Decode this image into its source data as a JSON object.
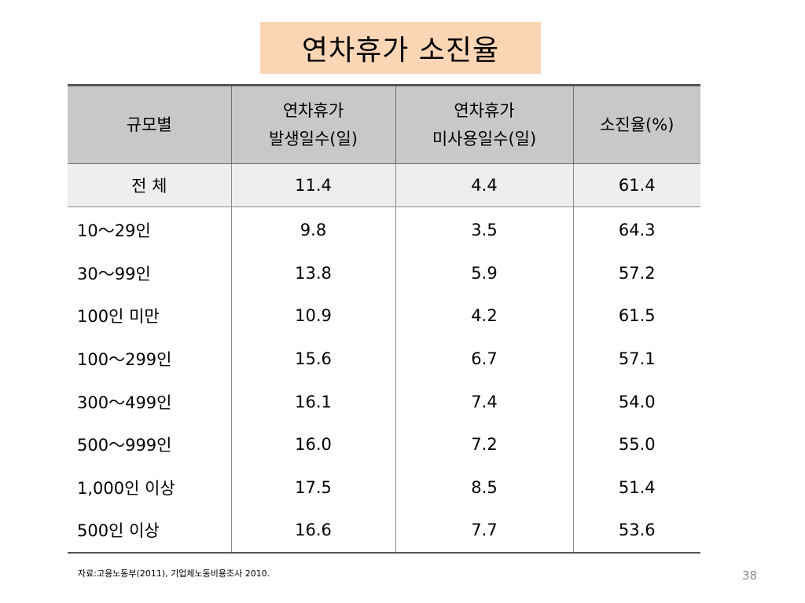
{
  "title": "연차휴가 소진율",
  "table": {
    "headers": [
      [
        "규모별"
      ],
      [
        "연차휴가",
        "발생일수(일)"
      ],
      [
        "연차휴가",
        "미사용일수(일)"
      ],
      [
        "소진율(%)"
      ]
    ],
    "total": {
      "label": "전 체",
      "values": [
        "11.4",
        "4.4",
        "61.4"
      ]
    },
    "rows": [
      {
        "label": "10～29인",
        "values": [
          "9.8",
          "3.5",
          "64.3"
        ]
      },
      {
        "label": "30～99인",
        "values": [
          "13.8",
          "5.9",
          "57.2"
        ]
      },
      {
        "label": "100인 미만",
        "values": [
          "10.9",
          "4.2",
          "61.5"
        ]
      },
      {
        "label": "100～299인",
        "values": [
          "15.6",
          "6.7",
          "57.1"
        ]
      },
      {
        "label": "300～499인",
        "values": [
          "16.1",
          "7.4",
          "54.0"
        ]
      },
      {
        "label": "500～999인",
        "values": [
          "16.0",
          "7.2",
          "55.0"
        ]
      },
      {
        "label": "1,000인 이상",
        "values": [
          "17.5",
          "8.5",
          "51.4"
        ]
      },
      {
        "label": "500인 이상",
        "values": [
          "16.6",
          "7.7",
          "53.6"
        ]
      }
    ]
  },
  "source": "자료:고용노동부(2011), 기업체노동비용조사 2010.",
  "page_number": "38"
}
